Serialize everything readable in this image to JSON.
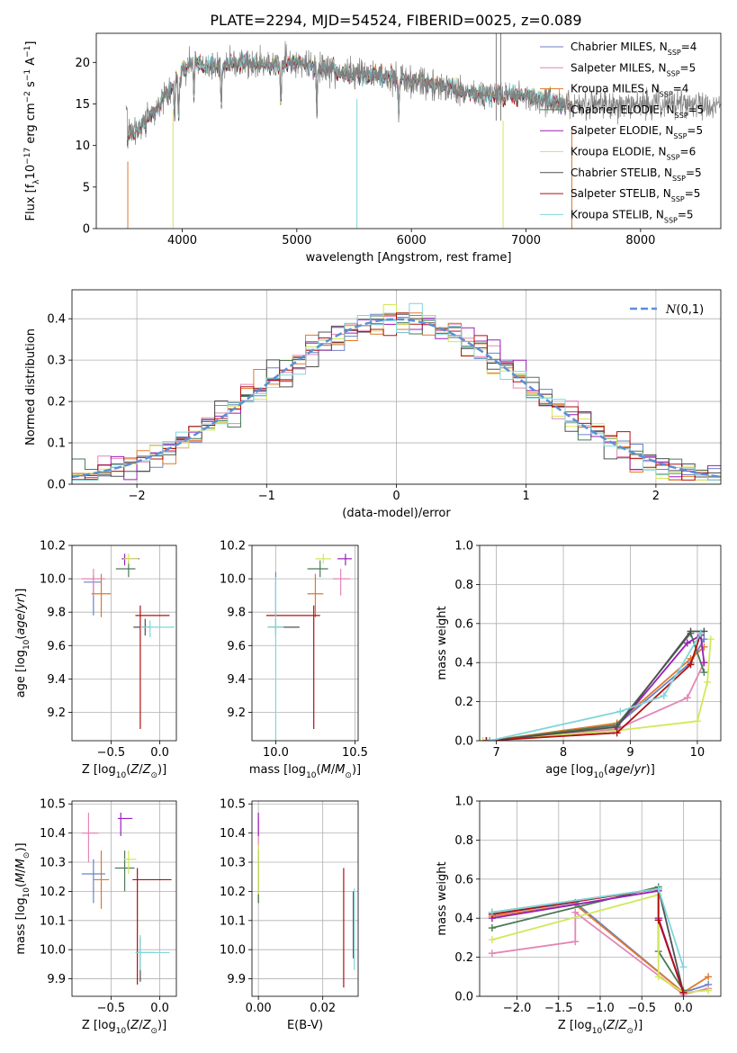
{
  "figure": {
    "title": "PLATE=2294, MJD=54524, FIBERID=0025, z=0.089"
  },
  "colors": {
    "Chabrier MILES": "#6b82c6",
    "Salpeter MILES": "#e486b6",
    "Kroupa MILES": "#e0782c",
    "Chabrier ELODIE": "#4a7a55",
    "Salpeter ELODIE": "#9a1fb8",
    "Kroupa ELODIE": "#d2e85a",
    "Chabrier STELIB": "#505050",
    "Salpeter STELIB": "#b01010",
    "Kroupa STELIB": "#7fd6da",
    "normal": "#5b8fd6"
  },
  "chart_data": [
    {
      "id": "spectrum",
      "type": "line",
      "xlabel": "wavelength [Angstrom, rest frame]",
      "ylabel": "Flux [f_λ10^-17 erg cm^-2 s^-1 A^-1]",
      "xlim": [
        3250,
        8700
      ],
      "ylim": [
        0,
        23.5
      ],
      "xticks": [
        4000,
        5000,
        6000,
        7000,
        8000
      ],
      "yticks": [
        0,
        5,
        10,
        15,
        20
      ],
      "grid": false,
      "legend_position": "right",
      "legend": [
        {
          "name": "Chabrier MILES",
          "nssp": "4"
        },
        {
          "name": "Salpeter MILES",
          "nssp": "5"
        },
        {
          "name": "Kroupa MILES",
          "nssp": "4"
        },
        {
          "name": "Chabrier ELODIE",
          "nssp": "5"
        },
        {
          "name": "Salpeter ELODIE",
          "nssp": "5"
        },
        {
          "name": "Kroupa ELODIE",
          "nssp": "6"
        },
        {
          "name": "Chabrier STELIB",
          "nssp": "5"
        },
        {
          "name": "Salpeter STELIB",
          "nssp": "5"
        },
        {
          "name": "Kroupa STELIB",
          "nssp": "5"
        }
      ],
      "continuum": [
        [
          3520,
          11
        ],
        [
          3600,
          12
        ],
        [
          3700,
          13
        ],
        [
          3800,
          15
        ],
        [
          3900,
          17
        ],
        [
          4000,
          19
        ],
        [
          4100,
          20
        ],
        [
          4300,
          19.5
        ],
        [
          4500,
          20
        ],
        [
          4700,
          19.5
        ],
        [
          5000,
          20
        ],
        [
          5300,
          19
        ],
        [
          5600,
          18.5
        ],
        [
          6000,
          18
        ],
        [
          6300,
          17
        ],
        [
          6600,
          16
        ],
        [
          7000,
          16
        ],
        [
          7300,
          15
        ],
        [
          7700,
          15
        ],
        [
          8000,
          15
        ],
        [
          8300,
          15
        ],
        [
          8700,
          14.5
        ]
      ],
      "data_x_range": [
        3510,
        8700
      ],
      "model_x_range": [
        3520,
        7400
      ],
      "noise_amplitude": 1.2,
      "spikes": [
        [
          3525,
          0,
          "#e0782c"
        ],
        [
          3920,
          0,
          "#d2e85a"
        ],
        [
          5525,
          0,
          "#7fd6da"
        ],
        [
          6800,
          0,
          "#d2e85a"
        ],
        [
          7400,
          0,
          "#e0782c"
        ],
        [
          6740,
          23.5,
          "#808080"
        ],
        [
          6780,
          23.5,
          "#808080"
        ]
      ]
    },
    {
      "id": "residuals",
      "type": "step",
      "xlabel": "(data-model)/error",
      "ylabel": "Normed distribution",
      "xlim": [
        -2.5,
        2.5
      ],
      "ylim": [
        0,
        0.47
      ],
      "xticks": [
        -2,
        -1,
        0,
        1,
        2
      ],
      "yticks": [
        0.0,
        0.1,
        0.2,
        0.3,
        0.4
      ],
      "grid": true,
      "bin_width": 0.1,
      "legend": [
        {
          "name": "N(0,1)"
        }
      ]
    },
    {
      "id": "age_vs_Z",
      "type": "errorbar",
      "xlabel": "Z [log10(Z/Z⊙)]",
      "ylabel": "age  [log10(age/yr)]",
      "xlim": [
        -0.9,
        0.17
      ],
      "ylim": [
        9.03,
        10.2
      ],
      "xticks": [
        -0.5,
        0.0
      ],
      "yticks": [
        9.2,
        9.4,
        9.6,
        9.8,
        10.0,
        10.2
      ],
      "grid": true,
      "points": [
        {
          "model": "Chabrier MILES",
          "x": -0.68,
          "y": 9.98,
          "xerr": [
            0.1,
            0.08
          ],
          "yerr": [
            0.2,
            0.04
          ]
        },
        {
          "model": "Salpeter MILES",
          "x": -0.68,
          "y": 10.0,
          "xerr": [
            0.12,
            0.12
          ],
          "yerr": [
            0.1,
            0.06
          ]
        },
        {
          "model": "Kroupa MILES",
          "x": -0.6,
          "y": 9.91,
          "xerr": [
            0.1,
            0.1
          ],
          "yerr": [
            0.14,
            0.12
          ]
        },
        {
          "model": "Chabrier ELODIE",
          "x": -0.32,
          "y": 10.06,
          "xerr": [
            0.13,
            0.07
          ],
          "yerr": [
            0.05,
            0.05
          ]
        },
        {
          "model": "Salpeter ELODIE",
          "x": -0.36,
          "y": 10.12,
          "xerr": [
            0.03,
            0.15
          ],
          "yerr": [
            0.04,
            0.03
          ]
        },
        {
          "model": "Kroupa ELODIE",
          "x": -0.32,
          "y": 10.12,
          "xerr": [
            0.05,
            0.1
          ],
          "yerr": [
            0.03,
            0.03
          ]
        },
        {
          "model": "Chabrier STELIB",
          "x": -0.15,
          "y": 9.71,
          "xerr": [
            0.12,
            0.05
          ],
          "yerr": [
            0.05,
            0.05
          ]
        },
        {
          "model": "Salpeter STELIB",
          "x": -0.2,
          "y": 9.78,
          "xerr": [
            0.05,
            0.3
          ],
          "yerr": [
            0.68,
            0.06
          ]
        },
        {
          "model": "Kroupa STELIB",
          "x": -0.1,
          "y": 9.71,
          "xerr": [
            0.1,
            0.25
          ],
          "yerr": [
            0.06,
            0.04
          ]
        }
      ]
    },
    {
      "id": "age_vs_mass",
      "type": "errorbar",
      "xlabel": "mass [log10(M/M⊙)]",
      "ylabel": "",
      "xlim": [
        9.85,
        10.52
      ],
      "ylim": [
        9.03,
        10.2
      ],
      "xticks": [
        10.0,
        10.5
      ],
      "yticks": [
        9.2,
        9.4,
        9.6,
        9.8,
        10.0,
        10.2
      ],
      "grid": true,
      "points": [
        {
          "model": "Chabrier MILES",
          "x": 10.0,
          "y": 9.98,
          "xerr": [
            0.0,
            0.0
          ],
          "yerr": [
            0.2,
            0.06
          ]
        },
        {
          "model": "Salpeter MILES",
          "x": 10.41,
          "y": 10.0,
          "xerr": [
            0.05,
            0.06
          ],
          "yerr": [
            0.1,
            0.06
          ]
        },
        {
          "model": "Kroupa MILES",
          "x": 10.25,
          "y": 9.91,
          "xerr": [
            0.05,
            0.05
          ],
          "yerr": [
            0.14,
            0.12
          ]
        },
        {
          "model": "Chabrier ELODIE",
          "x": 10.28,
          "y": 10.06,
          "xerr": [
            0.08,
            0.05
          ],
          "yerr": [
            0.05,
            0.05
          ]
        },
        {
          "model": "Salpeter ELODIE",
          "x": 10.44,
          "y": 10.12,
          "xerr": [
            0.05,
            0.04
          ],
          "yerr": [
            0.04,
            0.03
          ]
        },
        {
          "model": "Kroupa ELODIE",
          "x": 10.3,
          "y": 10.12,
          "xerr": [
            0.05,
            0.05
          ],
          "yerr": [
            0.03,
            0.03
          ]
        },
        {
          "model": "Chabrier STELIB",
          "x": 10.0,
          "y": 9.71,
          "xerr": [
            0.05,
            0.15
          ],
          "yerr": [
            0.05,
            0.05
          ]
        },
        {
          "model": "Salpeter STELIB",
          "x": 10.24,
          "y": 9.78,
          "xerr": [
            0.3,
            0.04
          ],
          "yerr": [
            0.68,
            0.06
          ]
        },
        {
          "model": "Kroupa STELIB",
          "x": 10.0,
          "y": 9.71,
          "xerr": [
            0.05,
            0.05
          ],
          "yerr": [
            0.7,
            0.3
          ]
        }
      ]
    },
    {
      "id": "weight_vs_age",
      "type": "line",
      "xlabel": "age  [log10(age/yr)]",
      "ylabel": "mass weight",
      "xlim": [
        6.75,
        10.35
      ],
      "ylim": [
        0,
        1.0
      ],
      "xticks": [
        7,
        8,
        9,
        10
      ],
      "yticks": [
        0.0,
        0.2,
        0.4,
        0.6,
        0.8,
        1.0
      ],
      "grid": true,
      "series": [
        {
          "model": "Chabrier MILES",
          "x": [
            6.9,
            8.8,
            9.9,
            10.1
          ],
          "y": [
            0.0,
            0.08,
            0.4,
            0.52
          ]
        },
        {
          "model": "Salpeter MILES",
          "x": [
            6.85,
            8.8,
            9.85,
            10.1
          ],
          "y": [
            0.0,
            0.06,
            0.22,
            0.4
          ]
        },
        {
          "model": "Kroupa MILES",
          "x": [
            6.9,
            8.8,
            9.9,
            10.1
          ],
          "y": [
            0.0,
            0.09,
            0.42,
            0.48
          ]
        },
        {
          "model": "Chabrier ELODIE",
          "x": [
            6.9,
            8.8,
            9.9,
            10.1
          ],
          "y": [
            0.0,
            0.08,
            0.55,
            0.35
          ]
        },
        {
          "model": "Salpeter ELODIE",
          "x": [
            6.85,
            8.75,
            9.85,
            10.05,
            10.1
          ],
          "y": [
            0.0,
            0.05,
            0.5,
            0.54,
            0.4
          ]
        },
        {
          "model": "Kroupa ELODIE",
          "x": [
            6.8,
            8.75,
            10.0,
            10.15,
            10.2
          ],
          "y": [
            0.0,
            0.05,
            0.1,
            0.3,
            0.52
          ]
        },
        {
          "model": "Chabrier STELIB",
          "x": [
            6.9,
            8.8,
            9.9,
            10.1
          ],
          "y": [
            0.0,
            0.07,
            0.56,
            0.56
          ]
        },
        {
          "model": "Salpeter STELIB",
          "x": [
            6.85,
            8.8,
            9.9,
            10.05
          ],
          "y": [
            0.0,
            0.04,
            0.39,
            0.55
          ]
        },
        {
          "model": "Kroupa STELIB",
          "x": [
            6.9,
            8.85,
            9.5,
            10.05
          ],
          "y": [
            0.0,
            0.15,
            0.23,
            0.55
          ]
        }
      ]
    },
    {
      "id": "mass_vs_Z",
      "type": "errorbar",
      "xlabel": "Z [log10(Z/Z⊙)]",
      "ylabel": "mass [log10(M/M⊙)]",
      "xlim": [
        -0.9,
        0.17
      ],
      "ylim": [
        9.84,
        10.51
      ],
      "xticks": [
        -0.5,
        0.0
      ],
      "yticks": [
        9.9,
        10.0,
        10.1,
        10.2,
        10.3,
        10.4,
        10.5
      ],
      "grid": true,
      "points": [
        {
          "model": "Chabrier MILES",
          "x": -0.68,
          "y": 10.26,
          "xerr": [
            0.12,
            0.12
          ],
          "yerr": [
            0.1,
            0.05
          ]
        },
        {
          "model": "Salpeter MILES",
          "x": -0.73,
          "y": 10.4,
          "xerr": [
            0.07,
            0.1
          ],
          "yerr": [
            0.1,
            0.07
          ]
        },
        {
          "model": "Kroupa MILES",
          "x": -0.6,
          "y": 10.24,
          "xerr": [
            0.08,
            0.08
          ],
          "yerr": [
            0.1,
            0.1
          ]
        },
        {
          "model": "Chabrier ELODIE",
          "x": -0.36,
          "y": 10.28,
          "xerr": [
            0.1,
            0.1
          ],
          "yerr": [
            0.08,
            0.06
          ]
        },
        {
          "model": "Salpeter ELODIE",
          "x": -0.4,
          "y": 10.45,
          "xerr": [
            0.03,
            0.12
          ],
          "yerr": [
            0.06,
            0.02
          ]
        },
        {
          "model": "Kroupa ELODIE",
          "x": -0.32,
          "y": 10.31,
          "xerr": [
            0.05,
            0.08
          ],
          "yerr": [
            0.05,
            0.03
          ]
        },
        {
          "model": "Chabrier STELIB",
          "x": -0.2,
          "y": 9.99,
          "xerr": [
            0.05,
            0.15
          ],
          "yerr": [
            0.1,
            0.05
          ]
        },
        {
          "model": "Salpeter STELIB",
          "x": -0.23,
          "y": 10.24,
          "xerr": [
            0.05,
            0.35
          ],
          "yerr": [
            0.36,
            0.04
          ]
        },
        {
          "model": "Kroupa STELIB",
          "x": -0.2,
          "y": 9.99,
          "xerr": [
            0.05,
            0.3
          ],
          "yerr": [
            0.06,
            0.06
          ]
        }
      ]
    },
    {
      "id": "mass_vs_ebv",
      "type": "errorbar",
      "xlabel": "E(B-V)",
      "ylabel": "",
      "xlim": [
        -0.002,
        0.031
      ],
      "ylim": [
        9.84,
        10.51
      ],
      "xticks": [
        0.0,
        0.02
      ],
      "yticks": [
        9.9,
        10.0,
        10.1,
        10.2,
        10.3,
        10.4,
        10.5
      ],
      "grid": true,
      "points": [
        {
          "model": "Chabrier MILES",
          "x": 0.0,
          "y": 10.26,
          "xerr": [
            0,
            0
          ],
          "yerr": [
            0.1,
            0.05
          ]
        },
        {
          "model": "Salpeter MILES",
          "x": 0.0,
          "y": 10.4,
          "xerr": [
            0,
            0
          ],
          "yerr": [
            0.08,
            0.05
          ]
        },
        {
          "model": "Kroupa MILES",
          "x": 0.0,
          "y": 10.24,
          "xerr": [
            0,
            0
          ],
          "yerr": [
            0.08,
            0.1
          ]
        },
        {
          "model": "Chabrier ELODIE",
          "x": 0.0,
          "y": 10.28,
          "xerr": [
            0,
            0
          ],
          "yerr": [
            0.12,
            0.06
          ]
        },
        {
          "model": "Salpeter ELODIE",
          "x": 0.0,
          "y": 10.45,
          "xerr": [
            0,
            0
          ],
          "yerr": [
            0.06,
            0.02
          ]
        },
        {
          "model": "Kroupa ELODIE",
          "x": 0.0,
          "y": 10.31,
          "xerr": [
            0,
            0
          ],
          "yerr": [
            0.12,
            0.05
          ]
        },
        {
          "model": "Chabrier STELIB",
          "x": 0.0295,
          "y": 10.07,
          "xerr": [
            0,
            0
          ],
          "yerr": [
            0.1,
            0.13
          ]
        },
        {
          "model": "Salpeter STELIB",
          "x": 0.0265,
          "y": 10.1,
          "xerr": [
            0,
            0
          ],
          "yerr": [
            0.23,
            0.18
          ]
        },
        {
          "model": "Kroupa STELIB",
          "x": 0.0298,
          "y": 10.07,
          "xerr": [
            0,
            0
          ],
          "yerr": [
            0.14,
            0.14
          ]
        }
      ]
    },
    {
      "id": "weight_vs_Z",
      "type": "line",
      "xlabel": "Z [log10(Z/Z⊙)]",
      "ylabel": "mass weight",
      "xlim": [
        -2.45,
        0.45
      ],
      "ylim": [
        0,
        1.0
      ],
      "xticks": [
        -2.0,
        -1.5,
        -1.0,
        -0.5,
        0.0
      ],
      "yticks": [
        0.0,
        0.2,
        0.4,
        0.6,
        0.8,
        1.0
      ],
      "grid": true,
      "series": [
        {
          "model": "Chabrier MILES",
          "x": [
            -2.3,
            -1.3,
            0.0,
            0.3
          ],
          "y": [
            0.42,
            0.48,
            0.02,
            0.06
          ]
        },
        {
          "model": "Salpeter MILES",
          "x": [
            -2.3,
            -1.3,
            -1.3,
            0.0,
            0.3
          ],
          "y": [
            0.22,
            0.28,
            0.43,
            0.01,
            0.04
          ]
        },
        {
          "model": "Kroupa MILES",
          "x": [
            -2.3,
            -1.3,
            0.0,
            0.3
          ],
          "y": [
            0.41,
            0.47,
            0.02,
            0.1
          ]
        },
        {
          "model": "Chabrier ELODIE",
          "x": [
            -2.3,
            -0.3,
            -0.3,
            0.0
          ],
          "y": [
            0.35,
            0.56,
            0.23,
            0.03
          ]
        },
        {
          "model": "Salpeter ELODIE",
          "x": [
            -2.3,
            -0.3,
            -0.3,
            0.0
          ],
          "y": [
            0.4,
            0.54,
            0.4,
            0.02
          ]
        },
        {
          "model": "Kroupa ELODIE",
          "x": [
            -2.3,
            -0.3,
            -0.3,
            0.0,
            0.3
          ],
          "y": [
            0.29,
            0.52,
            0.1,
            0.02,
            0.03
          ]
        },
        {
          "model": "Chabrier STELIB",
          "x": [
            -2.3,
            -0.3,
            0.0
          ],
          "y": [
            0.43,
            0.55,
            0.02
          ]
        },
        {
          "model": "Salpeter STELIB",
          "x": [
            -2.3,
            -0.3,
            -0.3,
            0.0
          ],
          "y": [
            0.42,
            0.55,
            0.39,
            0.02
          ]
        },
        {
          "model": "Kroupa STELIB",
          "x": [
            -2.3,
            -0.3,
            0.0
          ],
          "y": [
            0.43,
            0.55,
            0.15
          ]
        }
      ]
    }
  ]
}
